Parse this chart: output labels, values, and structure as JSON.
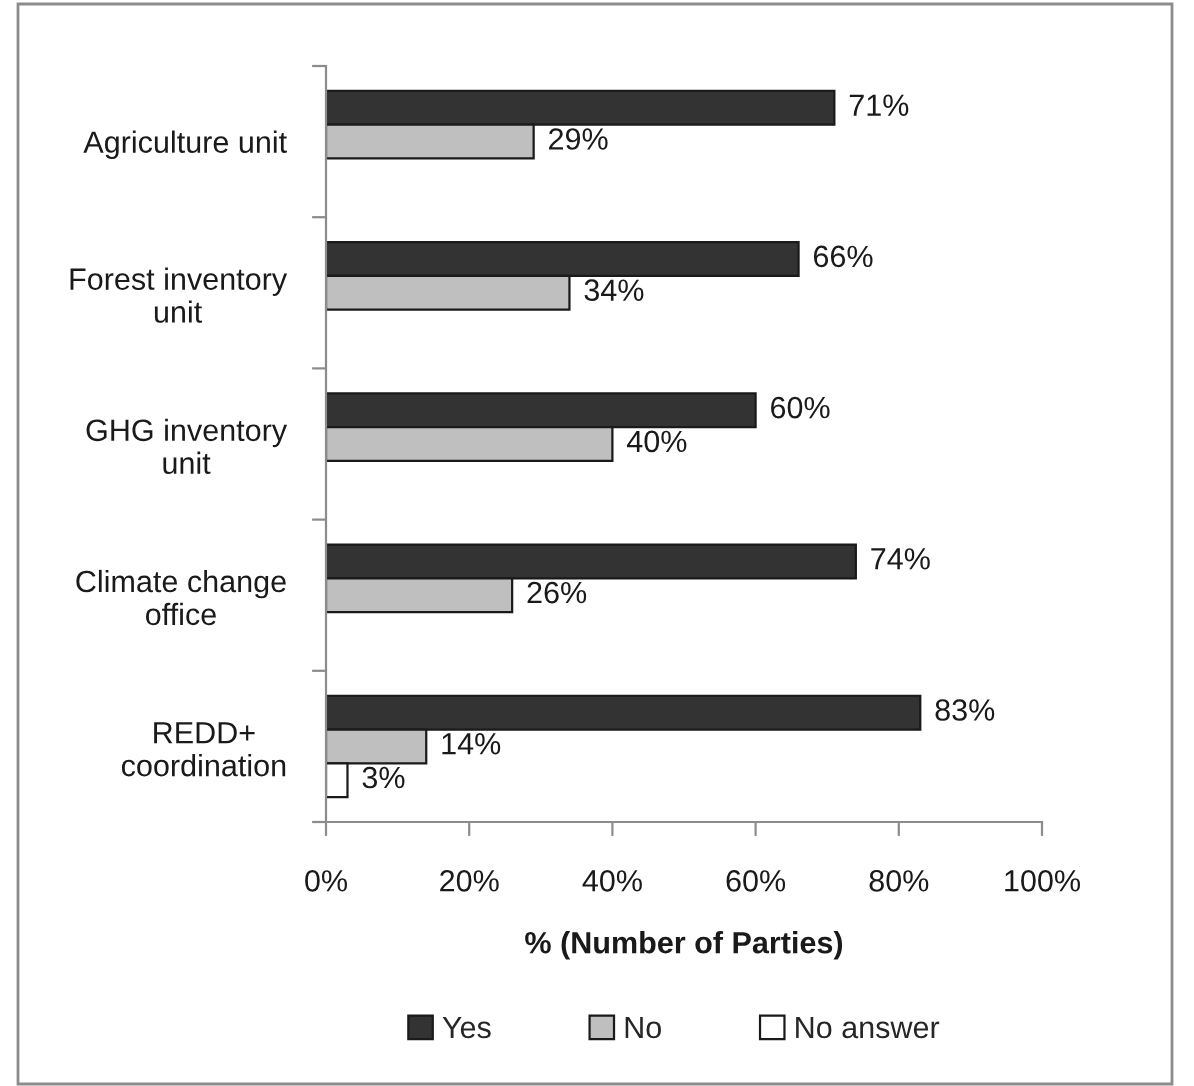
{
  "chart_data": {
    "type": "bar",
    "orientation": "horizontal",
    "categories": [
      "Agriculture unit",
      "Forest inventory\nunit",
      "GHG inventory\nunit",
      "Climate change\noffice",
      "REDD+\ncoordination"
    ],
    "series": [
      {
        "name": "Yes",
        "color": "#333333",
        "values": [
          71,
          66,
          60,
          74,
          83
        ],
        "value_labels": [
          "71%",
          "66%",
          "60%",
          "74%",
          "83%"
        ]
      },
      {
        "name": "No",
        "color": "#bfbfbf",
        "values": [
          29,
          34,
          40,
          26,
          14
        ],
        "value_labels": [
          "29%",
          "34%",
          "40%",
          "26%",
          "14%"
        ]
      },
      {
        "name": "No answer",
        "color": "#ffffff",
        "values": [
          null,
          null,
          null,
          null,
          3
        ],
        "value_labels": [
          null,
          null,
          null,
          null,
          "3%"
        ]
      }
    ],
    "xlabel": "% (Number of Parties)",
    "xlim": [
      0,
      100
    ],
    "xticks": [
      {
        "value": 0,
        "label": "0%"
      },
      {
        "value": 20,
        "label": "20%"
      },
      {
        "value": 40,
        "label": "40%"
      },
      {
        "value": 60,
        "label": "60%"
      },
      {
        "value": 80,
        "label": "80%"
      },
      {
        "value": 100,
        "label": "100%"
      }
    ],
    "grid": false,
    "legend": "bottom"
  }
}
